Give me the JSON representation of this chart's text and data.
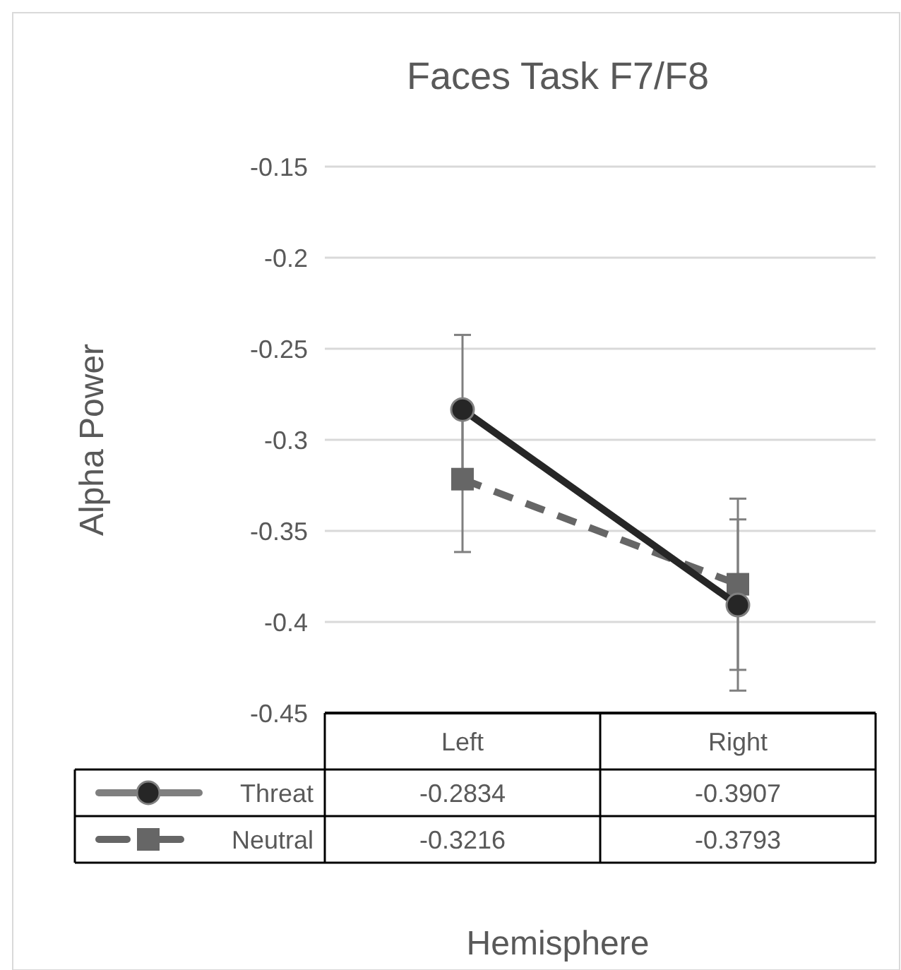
{
  "chart_data": {
    "type": "line",
    "title": "Faces Task F7/F8",
    "xlabel": "Hemisphere",
    "ylabel": "Alpha Power",
    "categories": [
      "Left",
      "Right"
    ],
    "series": [
      {
        "name": "Threat",
        "color": "#262626",
        "values": [
          -0.2834,
          -0.3907
        ],
        "errors": [
          0.041,
          0.047
        ],
        "marker": "circle",
        "line_style": "solid"
      },
      {
        "name": "Neutral",
        "color": "#666666",
        "values": [
          -0.3216,
          -0.3793
        ],
        "errors": [
          0.04,
          0.047
        ],
        "marker": "square",
        "line_style": "dashed"
      }
    ],
    "ylim": [
      -0.45,
      -0.15
    ],
    "yticks": [
      -0.45,
      -0.4,
      -0.35,
      -0.3,
      -0.25,
      -0.2,
      -0.15
    ],
    "grid": "y",
    "legend": "bottom",
    "data_labels": true
  }
}
